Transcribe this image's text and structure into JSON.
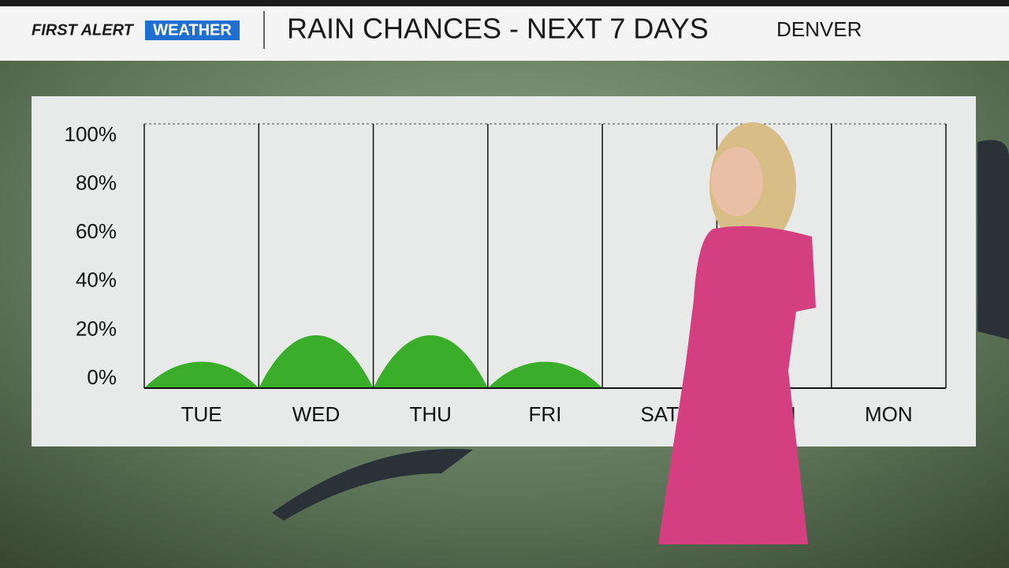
{
  "chart_data": {
    "type": "area",
    "title": "RAIN CHANCES - NEXT 7 DAYS",
    "subtitle": "DENVER",
    "annotations": [
      "FIRST ALERT",
      "WEATHER"
    ],
    "categories": [
      "TUE",
      "WED",
      "THU",
      "FRI",
      "SAT",
      "SUN",
      "MON"
    ],
    "values": [
      10,
      20,
      20,
      10,
      0,
      0,
      0
    ],
    "color": "#3aae2b",
    "ylim": [
      0,
      100
    ],
    "yticks": [
      {
        "value": 0,
        "label": "0%"
      },
      {
        "value": 20,
        "label": "20%"
      },
      {
        "value": 40,
        "label": "40%"
      },
      {
        "value": 60,
        "label": "60%"
      },
      {
        "value": 80,
        "label": "80%"
      },
      {
        "value": 100,
        "label": "100%"
      }
    ],
    "grid": true
  }
}
